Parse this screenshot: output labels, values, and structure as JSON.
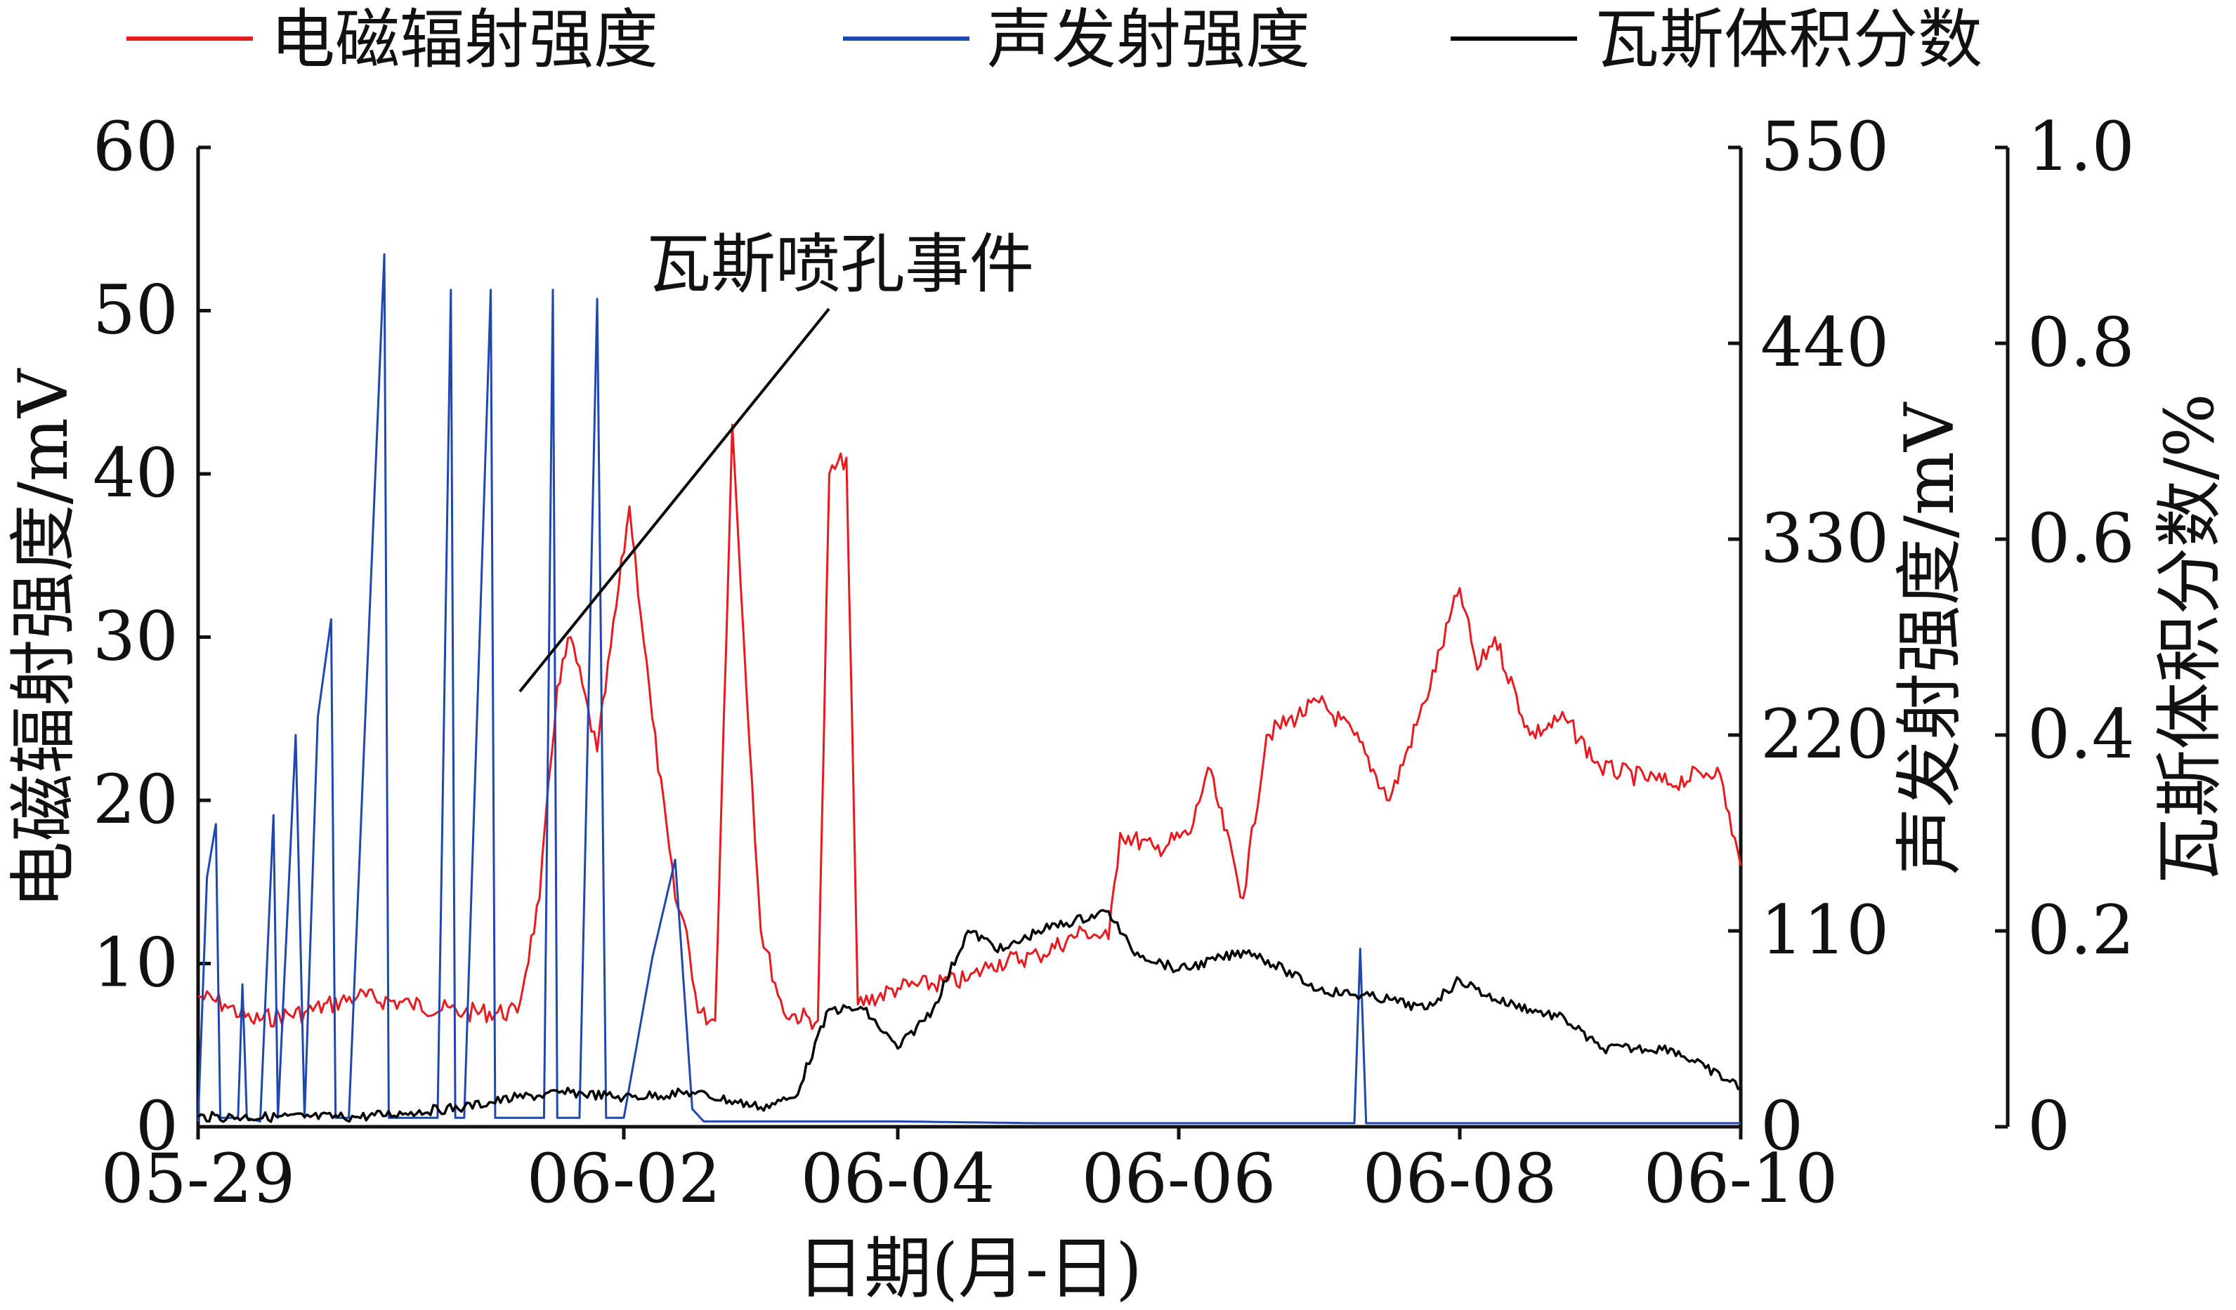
{
  "chart_data": {
    "type": "line",
    "legend": {
      "placement": "top",
      "entries": [
        {
          "label": "电磁辐射强度",
          "color": "#e8191f"
        },
        {
          "label": "声发射强度",
          "color": "#1f47b0"
        },
        {
          "label": "瓦斯体积分数",
          "color": "#000000"
        }
      ]
    },
    "xlabel": "日期(月-日)",
    "x_ticks": [
      "05-29",
      "06-02",
      "06-04",
      "06-06",
      "06-08",
      "06-10"
    ],
    "xlim": [
      "05-29",
      "06-10"
    ],
    "y_left": {
      "label": "电磁辐射强度/mV",
      "ticks": [
        "0",
        "10",
        "20",
        "30",
        "40",
        "50",
        "60"
      ],
      "lim": [
        0,
        60
      ]
    },
    "y_right1": {
      "label": "声发射强度/mV",
      "ticks": [
        "0",
        "110",
        "220",
        "330",
        "440",
        "550"
      ],
      "lim": [
        0,
        550
      ]
    },
    "y_right2": {
      "label": "瓦斯体积分数/%",
      "ticks": [
        "0",
        "0.2",
        "0.4",
        "0.6",
        "0.8",
        "1.0"
      ],
      "lim": [
        0,
        1.0
      ]
    },
    "annotation": {
      "text": "瓦斯喷孔事件"
    },
    "grid": false,
    "series": [
      {
        "name": "电磁辐射强度",
        "axis": "left",
        "color": "#e8191f",
        "points": [
          [
            "05-29 00:00",
            8
          ],
          [
            "05-29 06:00",
            7.5
          ],
          [
            "05-29 12:00",
            6.5
          ],
          [
            "05-30 00:00",
            7
          ],
          [
            "05-30 12:00",
            8
          ],
          [
            "05-31 00:00",
            7.5
          ],
          [
            "05-31 12:00",
            7
          ],
          [
            "06-01 00:00",
            7
          ],
          [
            "06-01 05:00",
            14
          ],
          [
            "06-01 09:00",
            27
          ],
          [
            "06-01 12:00",
            30
          ],
          [
            "06-01 18:00",
            23
          ],
          [
            "06-02 01:00",
            38
          ],
          [
            "06-02 05:00",
            25
          ],
          [
            "06-02 09:00",
            14
          ],
          [
            "06-02 11:00",
            12
          ],
          [
            "06-02 13:00",
            7
          ],
          [
            "06-02 16:00",
            6.5
          ],
          [
            "06-02 19:00",
            43
          ],
          [
            "06-02 21:00",
            30
          ],
          [
            "06-03 00:00",
            12
          ],
          [
            "06-03 04:00",
            7
          ],
          [
            "06-03 10:00",
            6.5
          ],
          [
            "06-03 12:00",
            40
          ],
          [
            "06-03 15:00",
            41
          ],
          [
            "06-03 17:00",
            7.5
          ],
          [
            "06-04 00:00",
            8.5
          ],
          [
            "06-04 12:00",
            9
          ],
          [
            "06-04 16:00",
            10
          ],
          [
            "06-05 00:00",
            10.5
          ],
          [
            "06-05 08:00",
            12
          ],
          [
            "06-05 12:00",
            11.5
          ],
          [
            "06-05 14:00",
            18
          ],
          [
            "06-05 20:00",
            17
          ],
          [
            "06-06 02:00",
            18
          ],
          [
            "06-06 05:00",
            22
          ],
          [
            "06-06 11:00",
            14
          ],
          [
            "06-06 15:00",
            24
          ],
          [
            "06-07 00:00",
            26
          ],
          [
            "06-07 06:00",
            24
          ],
          [
            "06-07 12:00",
            20
          ],
          [
            "06-07 18:00",
            26
          ],
          [
            "06-08 00:00",
            33
          ],
          [
            "06-08 03:00",
            28
          ],
          [
            "06-08 06:00",
            30
          ],
          [
            "06-08 12:00",
            24
          ],
          [
            "06-08 18:00",
            25
          ],
          [
            "06-09 00:00",
            22
          ],
          [
            "06-09 12:00",
            21
          ],
          [
            "06-09 20:00",
            22
          ],
          [
            "06-10 00:00",
            16
          ]
        ]
      },
      {
        "name": "声发射强度",
        "axis": "right1",
        "color": "#1f47b0",
        "points": [
          [
            "05-29 00:00",
            3
          ],
          [
            "05-29 02:00",
            140
          ],
          [
            "05-29 04:00",
            170
          ],
          [
            "05-29 05:00",
            5
          ],
          [
            "05-29 09:00",
            5
          ],
          [
            "05-29 10:00",
            80
          ],
          [
            "05-29 11:00",
            5
          ],
          [
            "05-29 14:00",
            3
          ],
          [
            "05-29 17:00",
            175
          ],
          [
            "05-29 18:00",
            5
          ],
          [
            "05-29 22:00",
            220
          ],
          [
            "05-30 00:00",
            5
          ],
          [
            "05-30 03:00",
            230
          ],
          [
            "05-30 06:00",
            285
          ],
          [
            "05-30 07:00",
            5
          ],
          [
            "05-30 10:00",
            5
          ],
          [
            "05-30 18:00",
            490
          ],
          [
            "05-30 19:00",
            5
          ],
          [
            "05-31 00:00",
            5
          ],
          [
            "05-31 06:00",
            5
          ],
          [
            "05-31 09:00",
            470
          ],
          [
            "05-31 10:00",
            5
          ],
          [
            "05-31 12:00",
            5
          ],
          [
            "05-31 18:00",
            470
          ],
          [
            "05-31 19:00",
            5
          ],
          [
            "06-01 00:00",
            5
          ],
          [
            "06-01 06:00",
            5
          ],
          [
            "06-01 08:00",
            470
          ],
          [
            "06-01 09:00",
            5
          ],
          [
            "06-01 14:00",
            5
          ],
          [
            "06-01 18:00",
            465
          ],
          [
            "06-01 20:00",
            5
          ],
          [
            "06-02 00:00",
            5
          ],
          [
            "06-02 05:00",
            95
          ],
          [
            "06-02 09:00",
            150
          ],
          [
            "06-02 12:00",
            10
          ],
          [
            "06-02 14:00",
            3
          ],
          [
            "06-03 00:00",
            3
          ],
          [
            "06-04 00:00",
            3
          ],
          [
            "06-05 00:00",
            2
          ],
          [
            "06-06 00:00",
            2
          ],
          [
            "06-07 00:00",
            2
          ],
          [
            "06-07 06:00",
            2
          ],
          [
            "06-07 07:00",
            100
          ],
          [
            "06-07 08:00",
            2
          ],
          [
            "06-08 00:00",
            2
          ],
          [
            "06-09 00:00",
            2
          ],
          [
            "06-10 00:00",
            2
          ]
        ]
      },
      {
        "name": "瓦斯体积分数",
        "axis": "right2",
        "color": "#000000",
        "points": [
          [
            "05-29 00:00",
            0.01
          ],
          [
            "05-30 00:00",
            0.01
          ],
          [
            "05-30 12:00",
            0.01
          ],
          [
            "05-31 00:00",
            0.015
          ],
          [
            "05-31 12:00",
            0.02
          ],
          [
            "06-01 00:00",
            0.03
          ],
          [
            "06-01 12:00",
            0.035
          ],
          [
            "06-02 00:00",
            0.03
          ],
          [
            "06-02 12:00",
            0.035
          ],
          [
            "06-03 00:00",
            0.02
          ],
          [
            "06-03 06:00",
            0.03
          ],
          [
            "06-03 12:00",
            0.12
          ],
          [
            "06-03 18:00",
            0.12
          ],
          [
            "06-04 00:00",
            0.08
          ],
          [
            "06-04 06:00",
            0.12
          ],
          [
            "06-04 12:00",
            0.2
          ],
          [
            "06-04 18:00",
            0.18
          ],
          [
            "06-05 00:00",
            0.2
          ],
          [
            "06-05 12:00",
            0.22
          ],
          [
            "06-05 16:00",
            0.18
          ],
          [
            "06-06 00:00",
            0.16
          ],
          [
            "06-06 12:00",
            0.18
          ],
          [
            "06-06 18:00",
            0.16
          ],
          [
            "06-07 00:00",
            0.14
          ],
          [
            "06-07 12:00",
            0.13
          ],
          [
            "06-07 18:00",
            0.12
          ],
          [
            "06-08 00:00",
            0.15
          ],
          [
            "06-08 06:00",
            0.13
          ],
          [
            "06-08 12:00",
            0.12
          ],
          [
            "06-08 18:00",
            0.11
          ],
          [
            "06-09 00:00",
            0.08
          ],
          [
            "06-09 12:00",
            0.08
          ],
          [
            "06-09 18:00",
            0.06
          ],
          [
            "06-10 00:00",
            0.04
          ]
        ]
      }
    ]
  }
}
